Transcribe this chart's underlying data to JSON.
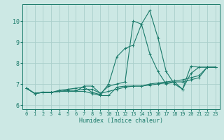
{
  "xlabel": "Humidex (Indice chaleur)",
  "ylabel": "",
  "xlim": [
    -0.5,
    23.5
  ],
  "ylim": [
    5.8,
    10.8
  ],
  "yticks": [
    6,
    7,
    8,
    9,
    10
  ],
  "xticks": [
    0,
    1,
    2,
    3,
    4,
    5,
    6,
    7,
    8,
    9,
    10,
    11,
    12,
    13,
    14,
    15,
    16,
    17,
    18,
    19,
    20,
    21,
    22,
    23
  ],
  "bg_color": "#cce8e4",
  "grid_color": "#aacfcb",
  "line_color": "#1a7a6a",
  "series": [
    [
      6.8,
      6.55,
      6.6,
      6.6,
      6.65,
      6.65,
      6.65,
      6.9,
      6.9,
      6.55,
      6.9,
      7.0,
      7.1,
      10.0,
      9.85,
      10.5,
      9.2,
      7.6,
      7.0,
      6.75,
      7.85,
      7.8,
      7.8,
      7.8
    ],
    [
      6.8,
      6.55,
      6.6,
      6.6,
      6.65,
      6.65,
      6.65,
      6.65,
      6.55,
      6.45,
      6.45,
      6.85,
      6.9,
      6.9,
      6.9,
      6.95,
      7.0,
      7.05,
      7.1,
      7.1,
      7.2,
      7.3,
      7.8,
      7.8
    ],
    [
      6.8,
      6.55,
      6.6,
      6.6,
      6.65,
      6.7,
      6.7,
      6.75,
      6.75,
      6.55,
      6.65,
      6.75,
      6.85,
      6.9,
      6.9,
      7.0,
      7.05,
      7.1,
      7.15,
      7.2,
      7.3,
      7.4,
      7.8,
      7.8
    ],
    [
      6.8,
      6.55,
      6.6,
      6.6,
      6.7,
      6.75,
      6.8,
      6.85,
      6.6,
      6.5,
      7.0,
      8.3,
      8.7,
      8.85,
      9.85,
      8.45,
      7.6,
      7.0,
      7.1,
      6.75,
      7.5,
      7.8,
      7.8,
      7.8
    ]
  ]
}
